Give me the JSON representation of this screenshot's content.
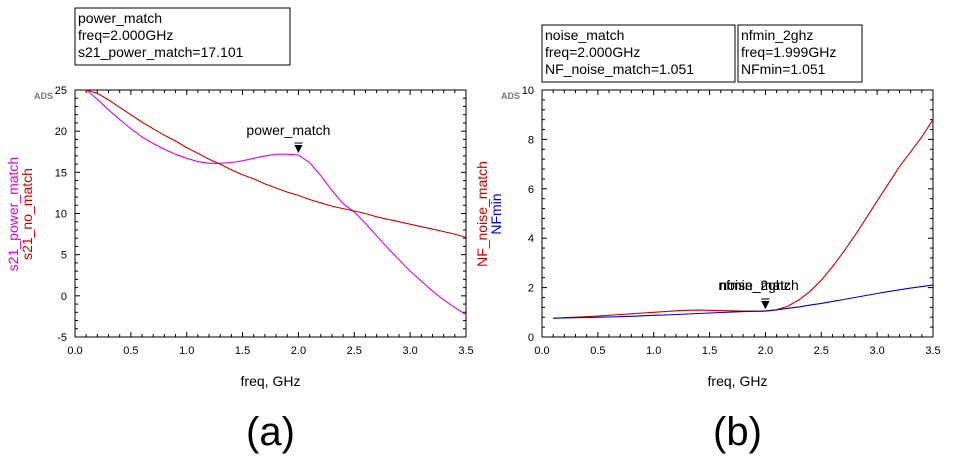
{
  "chart_data": [
    {
      "type": "line",
      "panel_label": "(a)",
      "watermark": "ADS",
      "xlabel": "freq, GHz",
      "ylabels": [
        {
          "text": "s21_power_match",
          "color": "#e000e0"
        },
        {
          "text": "s21_no_match",
          "color": "#cc0000"
        }
      ],
      "xlim": [
        0.0,
        3.5
      ],
      "ylim": [
        -5,
        25
      ],
      "x_ticks": [
        "0.0",
        "0.5",
        "1.0",
        "1.5",
        "2.0",
        "2.5",
        "3.0",
        "3.5"
      ],
      "y_ticks": [
        "-5",
        "0",
        "5",
        "10",
        "15",
        "20",
        "25"
      ],
      "readouts": [
        {
          "lines": [
            "power_match",
            "freq=2.000GHz",
            "s21_power_match=17.101"
          ]
        }
      ],
      "markers": [
        {
          "label": "power_match",
          "x": 2.0,
          "y": 17.101
        }
      ],
      "series": [
        {
          "name": "s21_power_match",
          "color": "#e000e0",
          "x": [
            0.1,
            0.2,
            0.3,
            0.4,
            0.5,
            0.6,
            0.7,
            0.8,
            0.9,
            1.0,
            1.1,
            1.2,
            1.3,
            1.4,
            1.5,
            1.6,
            1.7,
            1.8,
            1.9,
            2.0,
            2.1,
            2.2,
            2.3,
            2.4,
            2.5,
            2.6,
            2.7,
            2.8,
            2.9,
            3.0,
            3.1,
            3.2,
            3.3,
            3.4,
            3.5
          ],
          "y": [
            25,
            23.9,
            22.6,
            21.4,
            20.3,
            19.3,
            18.5,
            17.8,
            17.2,
            16.7,
            16.3,
            16.1,
            16.1,
            16.2,
            16.4,
            16.7,
            17.0,
            17.2,
            17.2,
            17.1,
            16.2,
            14.6,
            12.8,
            11.2,
            10.2,
            8.8,
            7.3,
            5.8,
            4.4,
            3.0,
            1.8,
            0.6,
            -0.5,
            -1.4,
            -2.3
          ]
        },
        {
          "name": "s21_no_match",
          "color": "#cc0000",
          "x": [
            0.1,
            0.2,
            0.3,
            0.4,
            0.5,
            0.6,
            0.7,
            0.8,
            0.9,
            1.0,
            1.1,
            1.2,
            1.3,
            1.4,
            1.5,
            1.6,
            1.7,
            1.8,
            1.9,
            2.0,
            2.1,
            2.2,
            2.3,
            2.4,
            2.5,
            2.6,
            2.7,
            2.8,
            2.9,
            3.0,
            3.1,
            3.2,
            3.3,
            3.4,
            3.5
          ],
          "y": [
            25.0,
            24.6,
            23.8,
            22.9,
            22.0,
            21.1,
            20.3,
            19.5,
            18.8,
            18.0,
            17.3,
            16.6,
            16.0,
            15.3,
            14.7,
            14.2,
            13.6,
            13.1,
            12.6,
            12.2,
            11.7,
            11.3,
            10.9,
            10.6,
            10.3,
            10.0,
            9.6,
            9.3,
            9.0,
            8.7,
            8.4,
            8.1,
            7.8,
            7.5,
            7.1
          ]
        }
      ]
    },
    {
      "type": "line",
      "panel_label": "(b)",
      "watermark": "ADS",
      "xlabel": "freq, GHz",
      "ylabels": [
        {
          "text": "NF_noise_match",
          "color": "#cc0000"
        },
        {
          "text": "NFmin",
          "color": "#0000cc"
        }
      ],
      "xlim": [
        0.0,
        3.5
      ],
      "ylim": [
        0,
        10
      ],
      "x_ticks": [
        "0.0",
        "0.5",
        "1.0",
        "1.5",
        "2.0",
        "2.5",
        "3.0",
        "3.5"
      ],
      "y_ticks": [
        "0",
        "2",
        "4",
        "6",
        "8",
        "10"
      ],
      "readouts": [
        {
          "lines": [
            "noise_match",
            "freq=2.000GHz",
            "NF_noise_match=1.051"
          ]
        },
        {
          "lines": [
            "nfmin_2ghz",
            "freq=1.999GHz",
            "NFmin=1.051"
          ]
        }
      ],
      "markers": [
        {
          "label": "noise_match",
          "x": 2.0,
          "y": 1.051
        },
        {
          "label": "nfmin_2ghz",
          "x": 1.999,
          "y": 1.051
        }
      ],
      "series": [
        {
          "name": "NF_noise_match",
          "color": "#cc0000",
          "x": [
            0.1,
            0.2,
            0.3,
            0.4,
            0.5,
            0.6,
            0.7,
            0.8,
            0.9,
            1.0,
            1.1,
            1.2,
            1.3,
            1.4,
            1.5,
            1.6,
            1.7,
            1.8,
            1.9,
            2.0,
            2.1,
            2.2,
            2.3,
            2.4,
            2.5,
            2.6,
            2.7,
            2.8,
            2.9,
            3.0,
            3.1,
            3.2,
            3.3,
            3.4,
            3.5
          ],
          "y": [
            0.76,
            0.78,
            0.8,
            0.82,
            0.85,
            0.88,
            0.91,
            0.94,
            0.97,
            1.0,
            1.03,
            1.06,
            1.08,
            1.09,
            1.08,
            1.07,
            1.06,
            1.05,
            1.05,
            1.05,
            1.1,
            1.25,
            1.5,
            1.85,
            2.3,
            2.85,
            3.45,
            4.1,
            4.8,
            5.5,
            6.2,
            6.9,
            7.5,
            8.1,
            8.8
          ]
        },
        {
          "name": "NFmin",
          "color": "#0000cc",
          "x": [
            0.1,
            0.2,
            0.3,
            0.4,
            0.5,
            0.6,
            0.7,
            0.8,
            0.9,
            1.0,
            1.1,
            1.2,
            1.3,
            1.4,
            1.5,
            1.6,
            1.7,
            1.8,
            1.9,
            2.0,
            2.1,
            2.2,
            2.3,
            2.4,
            2.5,
            2.6,
            2.7,
            2.8,
            2.9,
            3.0,
            3.1,
            3.2,
            3.3,
            3.4,
            3.5
          ],
          "y": [
            0.76,
            0.77,
            0.78,
            0.79,
            0.8,
            0.81,
            0.82,
            0.84,
            0.86,
            0.88,
            0.89,
            0.91,
            0.93,
            0.95,
            0.97,
            0.99,
            1.01,
            1.03,
            1.04,
            1.05,
            1.1,
            1.16,
            1.22,
            1.29,
            1.36,
            1.44,
            1.52,
            1.6,
            1.68,
            1.76,
            1.84,
            1.91,
            1.98,
            2.04,
            2.1
          ]
        }
      ]
    }
  ]
}
